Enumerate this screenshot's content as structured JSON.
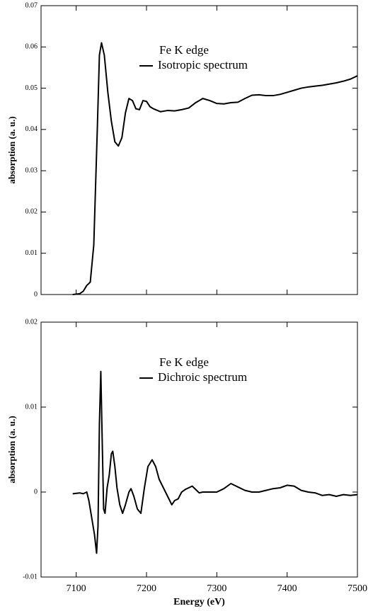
{
  "chart_data": [
    {
      "type": "line",
      "ylabel": "absorption (a. u.)",
      "legend_title": "Fe K edge",
      "x": [
        7095,
        7105,
        7110,
        7115,
        7120,
        7125,
        7130,
        7133,
        7136,
        7140,
        7145,
        7150,
        7155,
        7160,
        7165,
        7170,
        7175,
        7180,
        7185,
        7190,
        7195,
        7200,
        7205,
        7210,
        7220,
        7230,
        7240,
        7250,
        7260,
        7270,
        7280,
        7290,
        7300,
        7310,
        7320,
        7330,
        7340,
        7350,
        7360,
        7370,
        7380,
        7390,
        7400,
        7410,
        7420,
        7430,
        7440,
        7450,
        7460,
        7470,
        7480,
        7490,
        7500
      ],
      "series": [
        {
          "name": "Isotropic spectrum",
          "color": "#000000",
          "values": [
            0,
            0.0002,
            0.0008,
            0.0022,
            0.003,
            0.012,
            0.04,
            0.058,
            0.061,
            0.058,
            0.049,
            0.042,
            0.037,
            0.036,
            0.038,
            0.044,
            0.0475,
            0.047,
            0.045,
            0.0448,
            0.047,
            0.0468,
            0.0455,
            0.045,
            0.0443,
            0.0446,
            0.0445,
            0.0448,
            0.0452,
            0.0465,
            0.0475,
            0.047,
            0.0463,
            0.0462,
            0.0465,
            0.0466,
            0.0475,
            0.0483,
            0.0484,
            0.0482,
            0.0482,
            0.0485,
            0.049,
            0.0495,
            0.05,
            0.0503,
            0.0505,
            0.0507,
            0.051,
            0.0513,
            0.0517,
            0.0522,
            0.053
          ]
        }
      ],
      "xlim": [
        7050,
        7500
      ],
      "ylim": [
        0,
        0.07
      ],
      "yticks": [
        0,
        0.01,
        0.02,
        0.03,
        0.04,
        0.05,
        0.06,
        0.07
      ]
    },
    {
      "type": "line",
      "ylabel": "absorption (a. u.)",
      "legend_title": "Fe K edge",
      "xlabel": "Energy (eV)",
      "x": [
        7095,
        7105,
        7110,
        7115,
        7118,
        7122,
        7126,
        7129,
        7131,
        7133,
        7135,
        7137,
        7139,
        7141,
        7144,
        7147,
        7150,
        7152,
        7155,
        7158,
        7162,
        7166,
        7170,
        7175,
        7178,
        7182,
        7187,
        7192,
        7197,
        7202,
        7208,
        7213,
        7218,
        7224,
        7230,
        7236,
        7240,
        7245,
        7250,
        7255,
        7260,
        7265,
        7270,
        7275,
        7280,
        7290,
        7300,
        7310,
        7320,
        7325,
        7330,
        7340,
        7350,
        7360,
        7370,
        7380,
        7390,
        7400,
        7410,
        7420,
        7430,
        7440,
        7450,
        7460,
        7470,
        7480,
        7490,
        7500
      ],
      "series": [
        {
          "name": "Dichroic spectrum",
          "color": "#000000",
          "values": [
            -0.0002,
            -0.0001,
            -0.0002,
            0,
            -0.001,
            -0.003,
            -0.005,
            -0.0072,
            -0.004,
            0.008,
            0.0142,
            0.006,
            -0.002,
            -0.0025,
            0.0005,
            0.002,
            0.0045,
            0.0048,
            0.003,
            0.0005,
            -0.0015,
            -0.0025,
            -0.0015,
            0,
            0.0004,
            -0.0005,
            -0.002,
            -0.0025,
            0.0005,
            0.003,
            0.0038,
            0.003,
            0.0015,
            0.0005,
            -0.0005,
            -0.0015,
            -0.001,
            -0.0008,
            0,
            0.0003,
            0.0005,
            0.0007,
            0.0003,
            -0.0001,
            0,
            0,
            0,
            0.0004,
            0.001,
            0.0008,
            0.0006,
            0.0002,
            0,
            0,
            0.0002,
            0.0004,
            0.0005,
            0.0008,
            0.0007,
            0.0002,
            0,
            -0.0001,
            -0.0004,
            -0.0003,
            -0.0005,
            -0.0003,
            -0.0004,
            -0.0003
          ]
        }
      ],
      "xlim": [
        7050,
        7500
      ],
      "xticks": [
        7100,
        7200,
        7300,
        7400,
        7500
      ],
      "ylim": [
        -0.01,
        0.02
      ],
      "yticks": [
        -0.01,
        0,
        0.01,
        0.02
      ]
    }
  ]
}
